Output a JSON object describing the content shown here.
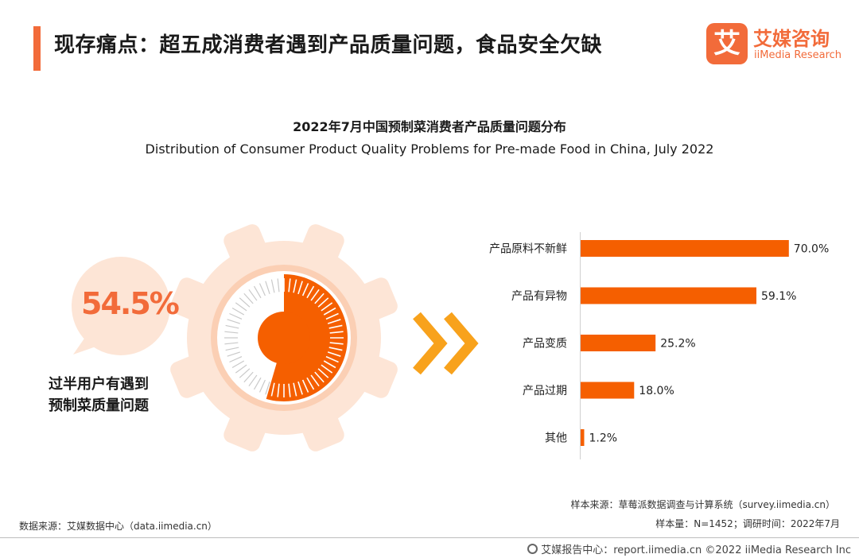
{
  "header": {
    "title": "现存痛点：超五成消费者遇到产品质量问题，食品安全欠缺",
    "logo_mark": "艾",
    "logo_cn": "艾媒咨询",
    "logo_en": "iiMedia Research"
  },
  "highlight": {
    "percent_label": "54.5%",
    "percent_value": 54.5,
    "caption_line1": "过半用户有遇到",
    "caption_line2": "预制菜质量问题"
  },
  "chart_data": {
    "type": "bar",
    "orientation": "horizontal",
    "title": "2022年7月中国预制菜消费者产品质量问题分布",
    "subtitle": "Distribution of Consumer Product Quality Problems for Pre-made Food in China, July 2022",
    "categories": [
      "产品原料不新鲜",
      "产品有异物",
      "产品变质",
      "产品过期",
      "其他"
    ],
    "values": [
      70.0,
      59.1,
      25.2,
      18.0,
      1.2
    ],
    "value_labels": [
      "70.0%",
      "59.1%",
      "25.2%",
      "18.0%",
      "1.2%"
    ],
    "unit": "%",
    "xlim": [
      0,
      100
    ],
    "xlabel": "",
    "ylabel": "",
    "grid": false,
    "legend": "none"
  },
  "sources": {
    "sample_source": "样本来源：草莓派数据调查与计算系统（survey.iimedia.cn）",
    "sample_size": "样本量：N=1452；调研时间：2022年7月",
    "data_source": "数据来源：艾媒数据中心（data.iimedia.cn）"
  },
  "footer": {
    "text": "艾媒报告中心：report.iimedia.cn  ©2022  iiMedia Research  Inc"
  },
  "colors": {
    "accent": "#f26b3a",
    "bar": "#f55f00",
    "gear": "#fde5d6",
    "gear_ring": "#fbcfb4",
    "chevron": "#f8a21c",
    "gauge_fill": "#f55f00",
    "gauge_tick": "#c9c9c9"
  }
}
